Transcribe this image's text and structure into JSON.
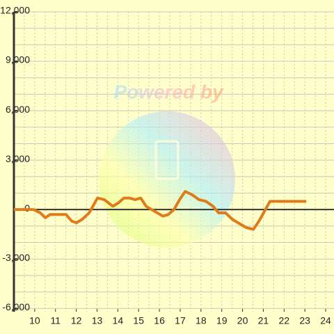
{
  "chart_data": {
    "type": "line",
    "watermark": "Powered by",
    "x": [
      9,
      9.94,
      10.27,
      10.51,
      10.74,
      11.01,
      11.51,
      11.78,
      12.01,
      12.28,
      12.62,
      13.02,
      13.35,
      13.76,
      14.02,
      14.29,
      14.56,
      14.83,
      15.1,
      15.36,
      15.76,
      16.17,
      16.43,
      16.7,
      16.97,
      17.24,
      17.57,
      17.91,
      18.24,
      18.58,
      18.85,
      19.18,
      19.52,
      19.78,
      20.19,
      20.52,
      20.79,
      21.32,
      23.07
    ],
    "series": [
      {
        "color": "#e07b1a",
        "values": [
          0,
          0,
          -200,
          -500,
          -300,
          -300,
          -300,
          -700,
          -800,
          -600,
          -200,
          700,
          600,
          200,
          400,
          700,
          700,
          600,
          700,
          200,
          -100,
          -400,
          -300,
          0,
          600,
          1100,
          900,
          600,
          500,
          200,
          -200,
          -200,
          -600,
          -800,
          -1100,
          -1200,
          -700,
          500,
          500
        ]
      }
    ],
    "xlim": [
      9,
      24.4
    ],
    "xticks": [
      10,
      11,
      12,
      13,
      14,
      15,
      16,
      17,
      18,
      19,
      20,
      21,
      22,
      23,
      24
    ],
    "ylim": [
      -6200,
      12000
    ],
    "yticks": [
      {
        "value": -6000,
        "label": "-6,000"
      },
      {
        "value": -3000,
        "label": "-3,000"
      },
      0,
      {
        "value": 3000,
        "label": "3,000"
      },
      {
        "value": 6000,
        "label": "6,000"
      },
      {
        "value": 9000,
        "label": "9,000"
      },
      {
        "value": 12000,
        "label": "12,000"
      }
    ],
    "minor_y_step": 1000,
    "minor_x_step": 0.5,
    "grid": true
  }
}
